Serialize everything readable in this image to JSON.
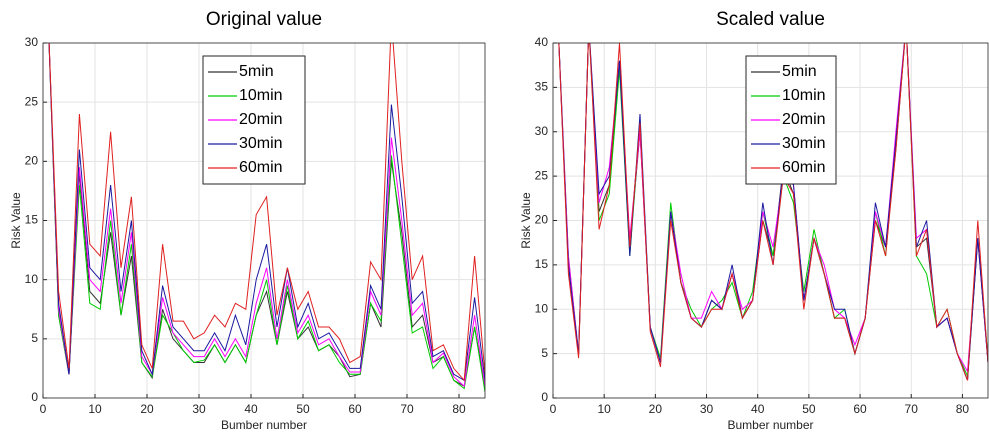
{
  "chart_data": [
    {
      "type": "line",
      "title": "Original value",
      "xlabel": "Bumber number",
      "ylabel": "Risk Value",
      "x": [
        1,
        3,
        5,
        7,
        9,
        11,
        13,
        15,
        17,
        19,
        21,
        23,
        25,
        27,
        29,
        31,
        33,
        35,
        37,
        39,
        41,
        43,
        45,
        47,
        49,
        51,
        53,
        55,
        57,
        59,
        61,
        63,
        65,
        67,
        69,
        71,
        73,
        75,
        77,
        79,
        81,
        83,
        85
      ],
      "xlim": [
        0,
        85
      ],
      "xticks": [
        0,
        10,
        20,
        30,
        40,
        50,
        60,
        70,
        80
      ],
      "ylim": [
        0,
        30
      ],
      "yticks": [
        0,
        5,
        10,
        15,
        20,
        25,
        30
      ],
      "grid": true,
      "legend": "top",
      "series": [
        {
          "name": "5min",
          "color": "#333333",
          "values": [
            32,
            7,
            2,
            19,
            9,
            8,
            14,
            7,
            12,
            3,
            1.7,
            7.5,
            5,
            4,
            3,
            3,
            4.5,
            3,
            4.5,
            3,
            7,
            9,
            4.5,
            9,
            5,
            6,
            4,
            4.5,
            3.5,
            1.8,
            2,
            8,
            6,
            20,
            14,
            6,
            7,
            3,
            3.5,
            1.5,
            1,
            6,
            1
          ]
        },
        {
          "name": "10min",
          "color": "#00cc00",
          "values": [
            32,
            7,
            2,
            18,
            8,
            7.5,
            15,
            7,
            13,
            3,
            1.8,
            7,
            5.5,
            4,
            3,
            3.2,
            4.5,
            3,
            4.5,
            3,
            7,
            10,
            4.5,
            9.5,
            5,
            6.5,
            4,
            4.5,
            3,
            2,
            2,
            8,
            6.5,
            20.5,
            13,
            5.5,
            6,
            2.5,
            3.5,
            1.5,
            0.8,
            6,
            0.5
          ]
        },
        {
          "name": "20min",
          "color": "#ff00ff",
          "values": [
            32,
            7.5,
            2,
            19.5,
            10,
            9,
            16,
            8,
            14,
            3.5,
            2,
            8.5,
            5.5,
            4.5,
            3.5,
            3.5,
            5,
            3.5,
            5,
            3.5,
            8,
            11,
            5,
            10,
            5.5,
            7,
            4.5,
            5,
            3.5,
            2.2,
            2.2,
            9,
            7,
            22,
            15,
            7,
            8,
            3,
            3.8,
            1.8,
            1,
            7,
            1
          ]
        },
        {
          "name": "30min",
          "color": "#1a1aa0",
          "values": [
            32,
            8,
            2,
            21,
            11,
            10,
            18,
            9,
            15,
            4,
            2,
            9.5,
            6,
            5,
            4,
            4,
            5.5,
            4,
            7,
            4.5,
            10,
            13,
            6,
            11,
            6,
            8,
            5,
            5.5,
            4,
            2.5,
            2.5,
            9.5,
            7.5,
            24.8,
            17,
            8,
            9,
            3.5,
            4,
            2,
            1.5,
            8.5,
            1.5
          ]
        },
        {
          "name": "60min",
          "color": "#e02020",
          "values": [
            32,
            9,
            2.5,
            24,
            13,
            12,
            22.5,
            11,
            17,
            4.5,
            2.5,
            13,
            6.5,
            6.5,
            5,
            5.5,
            7,
            6,
            8,
            7.5,
            15.5,
            17,
            7,
            11,
            7.5,
            9,
            6,
            6,
            5,
            3,
            3.5,
            11.5,
            10,
            32,
            20,
            10,
            12,
            4,
            4.5,
            2.5,
            1.5,
            12,
            2
          ]
        }
      ]
    },
    {
      "type": "line",
      "title": "Scaled value",
      "xlabel": "Bumber number",
      "ylabel": "Risk Value",
      "x": [
        1,
        3,
        5,
        7,
        9,
        11,
        13,
        15,
        17,
        19,
        21,
        23,
        25,
        27,
        29,
        31,
        33,
        35,
        37,
        39,
        41,
        43,
        45,
        47,
        49,
        51,
        53,
        55,
        57,
        59,
        61,
        63,
        65,
        67,
        69,
        71,
        73,
        75,
        77,
        79,
        81,
        83,
        85
      ],
      "xlim": [
        0,
        85
      ],
      "xticks": [
        0,
        10,
        20,
        30,
        40,
        50,
        60,
        70,
        80
      ],
      "ylim": [
        0,
        40
      ],
      "yticks": [
        0,
        5,
        10,
        15,
        20,
        25,
        30,
        35,
        40
      ],
      "grid": true,
      "legend": "top",
      "series": [
        {
          "name": "5min",
          "color": "#333333",
          "values": [
            42,
            15,
            5,
            42,
            21,
            24,
            38,
            17,
            30,
            8,
            4,
            21,
            13,
            9,
            8,
            11,
            10,
            14,
            9,
            11,
            20,
            16,
            26,
            23,
            11,
            18,
            14,
            9,
            9,
            5,
            9,
            20,
            17,
            28,
            42,
            17,
            18,
            8,
            9,
            5,
            2,
            18,
            4
          ]
        },
        {
          "name": "10min",
          "color": "#00cc00",
          "values": [
            42,
            16,
            5,
            42,
            20,
            23,
            37,
            16,
            31,
            8,
            4.5,
            22,
            13,
            10,
            8,
            10,
            11,
            13,
            9,
            12,
            21,
            16,
            25,
            22,
            12,
            19,
            14,
            9,
            10,
            5,
            9,
            21,
            16,
            29,
            42,
            16,
            14,
            8,
            10,
            5,
            2.5,
            18,
            4.5
          ]
        },
        {
          "name": "20min",
          "color": "#ff00ff",
          "values": [
            42,
            16,
            5,
            42,
            22,
            26,
            38,
            18,
            30,
            8,
            4,
            21,
            14,
            9,
            9,
            12,
            10,
            14,
            10,
            11,
            21,
            17,
            25,
            24,
            11,
            18,
            15,
            10,
            9,
            6,
            9,
            21,
            17,
            30,
            42,
            18,
            19,
            8,
            9,
            5,
            3,
            18,
            4
          ]
        },
        {
          "name": "30min",
          "color": "#1a1aa0",
          "values": [
            42,
            15,
            5,
            42,
            23,
            25,
            38,
            16,
            32,
            8,
            4,
            21,
            13,
            9,
            8,
            11,
            10,
            15,
            9,
            11,
            22,
            15,
            26,
            24,
            11,
            18,
            14,
            10,
            10,
            5,
            9,
            22,
            17,
            29,
            42,
            17,
            20,
            8,
            9,
            5,
            2,
            18,
            4
          ]
        },
        {
          "name": "60min",
          "color": "#e02020",
          "values": [
            42,
            14,
            4.5,
            42,
            19,
            24,
            40,
            17,
            31,
            7.5,
            3.5,
            20,
            13,
            9,
            8,
            10,
            10,
            14,
            9,
            11,
            20,
            15,
            25,
            23,
            10,
            18,
            14,
            9,
            9,
            5,
            9,
            20,
            16,
            28,
            42,
            16,
            19,
            8,
            10,
            5,
            2,
            20,
            4
          ]
        }
      ]
    }
  ]
}
